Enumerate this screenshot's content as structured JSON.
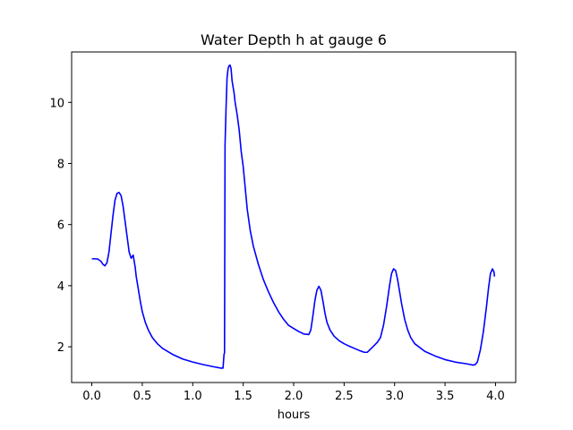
{
  "chart_data": {
    "type": "line",
    "title": "Water Depth h at gauge 6",
    "xlabel": "hours",
    "ylabel": "",
    "xlim": [
      -0.2,
      4.2
    ],
    "ylim": [
      0.83,
      11.65
    ],
    "xticks": [
      0.0,
      0.5,
      1.0,
      1.5,
      2.0,
      2.5,
      3.0,
      3.5,
      4.0
    ],
    "xtick_labels": [
      "0.0",
      "0.5",
      "1.0",
      "1.5",
      "2.0",
      "2.5",
      "3.0",
      "3.5",
      "4.0"
    ],
    "yticks": [
      2,
      4,
      6,
      8,
      10
    ],
    "ytick_labels": [
      "2",
      "4",
      "6",
      "8",
      "10"
    ],
    "grid": false,
    "colors": {
      "line": "#0000ff",
      "axes": "#000000",
      "background": "#ffffff"
    },
    "series": [
      {
        "x": [
          0.0,
          0.03,
          0.06,
          0.09,
          0.11,
          0.13,
          0.15,
          0.17,
          0.19,
          0.21,
          0.23,
          0.25,
          0.27,
          0.29,
          0.31,
          0.33,
          0.35,
          0.37,
          0.39,
          0.41,
          0.42,
          0.43,
          0.44,
          0.46,
          0.48,
          0.5,
          0.53,
          0.56,
          0.6,
          0.65,
          0.7,
          0.8,
          0.9,
          1.0,
          1.1,
          1.2,
          1.28,
          1.3,
          1.31,
          1.315,
          1.32,
          1.33,
          1.34,
          1.35,
          1.36,
          1.37,
          1.38,
          1.39,
          1.4,
          1.41,
          1.42,
          1.44,
          1.46,
          1.48,
          1.5,
          1.52,
          1.54,
          1.57,
          1.6,
          1.65,
          1.7,
          1.75,
          1.8,
          1.85,
          1.9,
          1.95,
          2.0,
          2.05,
          2.1,
          2.15,
          2.17,
          2.19,
          2.21,
          2.23,
          2.25,
          2.27,
          2.29,
          2.31,
          2.33,
          2.36,
          2.4,
          2.45,
          2.5,
          2.55,
          2.6,
          2.65,
          2.7,
          2.73,
          2.77,
          2.8,
          2.83,
          2.86,
          2.89,
          2.92,
          2.95,
          2.97,
          2.99,
          3.01,
          3.03,
          3.05,
          3.07,
          3.1,
          3.13,
          3.16,
          3.2,
          3.3,
          3.4,
          3.5,
          3.6,
          3.7,
          3.75,
          3.78,
          3.8,
          3.82,
          3.85,
          3.88,
          3.91,
          3.93,
          3.95,
          3.97,
          3.985,
          3.99
        ],
        "y": [
          4.88,
          4.88,
          4.87,
          4.8,
          4.7,
          4.65,
          4.75,
          5.1,
          5.7,
          6.3,
          6.8,
          7.02,
          7.05,
          6.95,
          6.6,
          6.1,
          5.6,
          5.1,
          4.9,
          5.0,
          4.8,
          4.6,
          4.3,
          3.9,
          3.5,
          3.15,
          2.8,
          2.55,
          2.3,
          2.1,
          1.95,
          1.75,
          1.6,
          1.5,
          1.42,
          1.35,
          1.3,
          1.3,
          1.75,
          1.8,
          8.6,
          9.8,
          10.8,
          11.1,
          11.2,
          11.22,
          11.1,
          10.7,
          10.5,
          10.3,
          10.0,
          9.6,
          9.1,
          8.4,
          7.9,
          7.2,
          6.5,
          5.8,
          5.3,
          4.7,
          4.2,
          3.8,
          3.45,
          3.15,
          2.9,
          2.7,
          2.6,
          2.5,
          2.42,
          2.4,
          2.55,
          3.0,
          3.5,
          3.85,
          3.98,
          3.85,
          3.5,
          3.1,
          2.8,
          2.55,
          2.35,
          2.2,
          2.1,
          2.02,
          1.95,
          1.88,
          1.82,
          1.82,
          1.95,
          2.05,
          2.15,
          2.3,
          2.7,
          3.3,
          4.0,
          4.4,
          4.55,
          4.5,
          4.2,
          3.8,
          3.4,
          2.9,
          2.55,
          2.3,
          2.1,
          1.85,
          1.7,
          1.58,
          1.5,
          1.45,
          1.42,
          1.4,
          1.42,
          1.5,
          1.9,
          2.5,
          3.3,
          3.9,
          4.4,
          4.55,
          4.45,
          4.3
        ]
      }
    ]
  }
}
